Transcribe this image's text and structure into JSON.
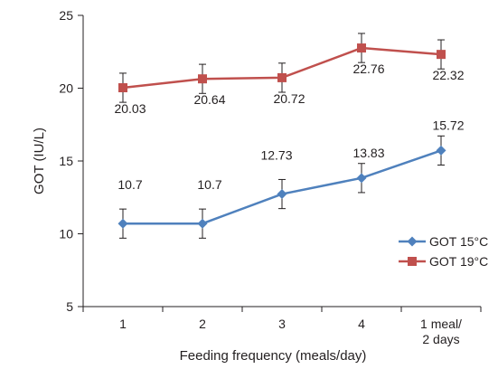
{
  "chart_data": {
    "type": "line",
    "title": "",
    "xlabel": "Feeding frequency (meals/day)",
    "ylabel": "GOT (IU/L)",
    "categories": [
      "1",
      "2",
      "3",
      "4",
      "1 meal/\n2 days"
    ],
    "ylim": [
      5,
      25
    ],
    "yticks": [
      5,
      10,
      15,
      20,
      25
    ],
    "grid": false,
    "legend_position": "bottom-right",
    "error_bar": 1,
    "series": [
      {
        "name": "GOT 15°C",
        "values": [
          10.7,
          10.7,
          12.73,
          13.83,
          15.72
        ],
        "labels": [
          "10.7",
          "10.7",
          "12.73",
          "13.83",
          "15.72"
        ],
        "color": "#4f81bd",
        "marker": "diamond"
      },
      {
        "name": "GOT 19°C",
        "values": [
          20.03,
          20.64,
          20.72,
          22.76,
          22.32
        ],
        "labels": [
          "20.03",
          "20.64",
          "20.72",
          "22.76",
          "22.32"
        ],
        "color": "#c0504d",
        "marker": "square"
      }
    ]
  }
}
